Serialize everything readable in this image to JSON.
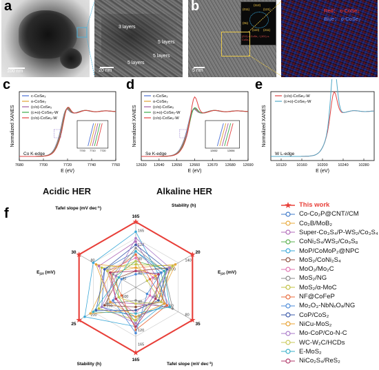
{
  "panel_a": {
    "letter": "a",
    "scale_left": "100 nm",
    "scale_right": "20 nm",
    "annotations": [
      "3 layers",
      "5 layers",
      "5 layers",
      "5 layers"
    ]
  },
  "panel_b": {
    "letter": "b",
    "scale": "5 nm",
    "fft_labels": [
      "(011)",
      "(112)",
      "(121)",
      "(211)",
      "(0ū)",
      "(110)"
    ],
    "fft_caption": "(211) c-CoSe₂ / (101) o-CoSe₂",
    "map_red": "Red： c-CoSe₂",
    "map_blue": "Blue： o-CoSe₂"
  },
  "section_labels": {
    "acidic": "Acidic HER",
    "alkaline": "Alkaline HER"
  },
  "chart_data": [
    {
      "panel": "c",
      "type": "line",
      "xlabel": "E (eV)",
      "ylabel": "Normalized XANES",
      "edge_label": "Co K-edge",
      "xlim": [
        7680,
        7760
      ],
      "xticks": [
        7680,
        7700,
        7720,
        7740,
        7760
      ],
      "series": [
        {
          "name": "c-CoSe₂",
          "color": "#4a6fd6"
        },
        {
          "name": "o-CoSe₂",
          "color": "#e0a030"
        },
        {
          "name": "(c/o)-CoSe₂",
          "color": "#a05aa0"
        },
        {
          "name": "(c+o)-CoSe₂-W",
          "color": "#3aaa4a"
        },
        {
          "name": "(c/o)-CoSe₂-W",
          "color": "#e04040"
        }
      ],
      "inset_xticks": [
        7700,
        7710,
        7720
      ]
    },
    {
      "panel": "d",
      "type": "line",
      "xlabel": "E (eV)",
      "ylabel": "Normalized XANES",
      "edge_label": "Se K-edge",
      "xlim": [
        12630,
        12690
      ],
      "xticks": [
        12630,
        12640,
        12650,
        12660,
        12670,
        12680,
        12690
      ],
      "series": [
        {
          "name": "c-CoSe₂",
          "color": "#4a6fd6"
        },
        {
          "name": "o-CoSe₂",
          "color": "#e0a030"
        },
        {
          "name": "(c/o)-CoSe₂",
          "color": "#a05aa0"
        },
        {
          "name": "(c+o)-CoSe₂-W",
          "color": "#3aaa4a"
        },
        {
          "name": "(c/o)-CoSe₂-W",
          "color": "#e04040"
        }
      ],
      "inset_xticks": [
        12652,
        12656
      ]
    },
    {
      "panel": "e",
      "type": "line",
      "xlabel": "E (eV)",
      "ylabel": "Normalized XANES",
      "edge_label": "W L-edge",
      "xlim": [
        10100,
        10300
      ],
      "xticks": [
        10120,
        10160,
        10200,
        10240,
        10280
      ],
      "series": [
        {
          "name": "(c/o)-CoSe₂-W",
          "color": "#e04040"
        },
        {
          "name": "(c+o)-CoSe₂-W",
          "color": "#4fa8c8"
        }
      ]
    },
    {
      "panel": "f",
      "type": "radar",
      "axes": [
        {
          "label": "Stability (h)",
          "max": 165,
          "ticks": [
            40,
            80,
            120,
            165
          ]
        },
        {
          "label": "E",
          "sub": "j10",
          "unit": " (mV)",
          "max": 20,
          "ticks": [
            60,
            100,
            140
          ]
        },
        {
          "label": "Tafel slope (mV dec",
          "sup": "-1",
          "tail": ")",
          "max": 35,
          "ticks": [
            40,
            60,
            80
          ]
        },
        {
          "label": "Stability (h)",
          "max": 165,
          "ticks": [
            40,
            80,
            120,
            165
          ]
        },
        {
          "label": "E",
          "sub": "j10",
          "unit": " (mV)",
          "max": 25,
          "ticks": [
            100,
            150,
            200
          ]
        },
        {
          "label": "Tafel slope (mV dec",
          "sup": "-1",
          "tail": ")",
          "max": 30,
          "ticks": [
            40,
            60,
            80
          ]
        }
      ],
      "legend": [
        {
          "name": "This work",
          "color": "#e8403a",
          "marker": "star"
        },
        {
          "name": "Co-Co₂P@CNT//CM",
          "color": "#3c78c8"
        },
        {
          "name": "Co₂B/MoB₂",
          "color": "#e8a83a"
        },
        {
          "name": "Super-Co₃S₄/P-WS₂/Co₃S₄",
          "color": "#b06ab8"
        },
        {
          "name": "CoNi₂S₄/WS₂/Co₉S₈",
          "color": "#58b04c"
        },
        {
          "name": "MoP/CoMoP₂@NPC",
          "color": "#3aa8d8"
        },
        {
          "name": "MoS₂/CoNi₂S₄",
          "color": "#8a4a3a"
        },
        {
          "name": "MoO₂/Mo₂C",
          "color": "#e070b0"
        },
        {
          "name": "MoS₂/NG",
          "color": "#888888"
        },
        {
          "name": "MoS₂/α-MoC",
          "color": "#c0c040"
        },
        {
          "name": "NF@CoFeP",
          "color": "#e86a3a"
        },
        {
          "name": "Mo₂O₃-NbNₓOₔ/NG",
          "color": "#4a8ad8"
        },
        {
          "name": "CoP/CoS₂",
          "color": "#3a58a8"
        },
        {
          "name": "NiCu-MoS₂",
          "color": "#e8a030"
        },
        {
          "name": "Mo-CoP/Co-N-C",
          "color": "#a878c8"
        },
        {
          "name": "WC-W₂C/HCDs",
          "color": "#c8c858"
        },
        {
          "name": "E-MoS₂",
          "color": "#3ab0c8"
        },
        {
          "name": "NiCo₂S₄/ReS₂",
          "color": "#b03a6a"
        }
      ],
      "series_values": [
        [
          1.0,
          1.0,
          1.0,
          1.0,
          1.0,
          1.0
        ],
        [
          0.55,
          0.45,
          0.55,
          0.45,
          0.6,
          0.55
        ],
        [
          0.3,
          0.7,
          0.4,
          0.35,
          0.8,
          0.45
        ],
        [
          0.7,
          0.35,
          0.6,
          0.25,
          0.45,
          0.65
        ],
        [
          0.4,
          0.55,
          0.3,
          0.55,
          0.3,
          0.35
        ],
        [
          0.85,
          0.4,
          0.5,
          0.6,
          0.9,
          0.75
        ],
        [
          0.25,
          0.6,
          0.45,
          0.3,
          0.55,
          0.3
        ],
        [
          0.45,
          0.3,
          0.25,
          0.4,
          0.35,
          0.5
        ],
        [
          0.6,
          0.5,
          0.65,
          0.2,
          0.5,
          0.4
        ],
        [
          0.35,
          0.65,
          0.35,
          0.5,
          0.65,
          0.6
        ],
        [
          0.5,
          0.25,
          0.55,
          0.65,
          0.25,
          0.45
        ],
        [
          0.2,
          0.45,
          0.2,
          0.7,
          0.4,
          0.25
        ],
        [
          0.65,
          0.55,
          0.4,
          0.35,
          0.7,
          0.55
        ],
        [
          0.3,
          0.35,
          0.5,
          0.45,
          0.45,
          0.7
        ],
        [
          0.75,
          0.6,
          0.3,
          0.55,
          0.6,
          0.35
        ],
        [
          0.4,
          0.2,
          0.45,
          0.25,
          0.3,
          0.5
        ],
        [
          0.55,
          0.5,
          0.6,
          0.4,
          0.75,
          0.3
        ],
        [
          0.25,
          0.4,
          0.35,
          0.6,
          0.35,
          0.45
        ]
      ]
    }
  ]
}
